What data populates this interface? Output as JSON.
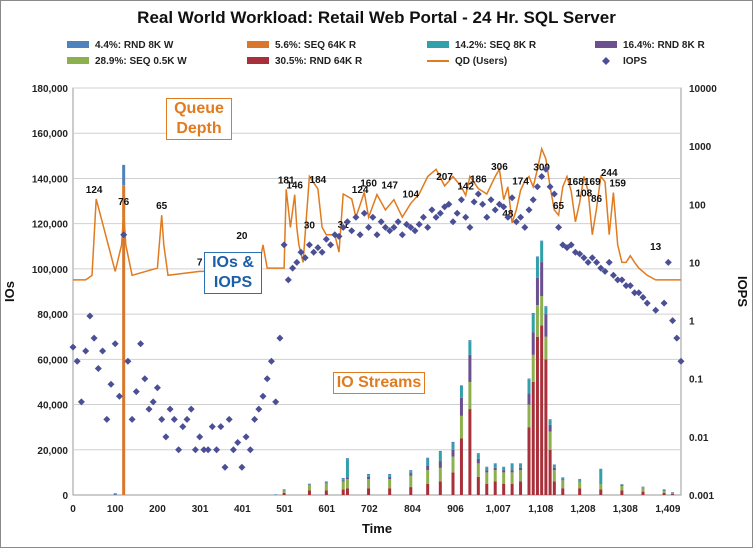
{
  "chart_data": {
    "type": "bar",
    "title": "Real World Workload: Retail Web Portal - 24 Hr. SQL Server",
    "xlabel": "Time",
    "ylabel": "IOs",
    "y2label": "IOPS",
    "ylim": [
      0,
      180000
    ],
    "y2lim_log": [
      0.001,
      10000
    ],
    "xlim": [
      0,
      1440
    ],
    "x_ticks": [
      "0",
      "100",
      "200",
      "301",
      "401",
      "501",
      "601",
      "702",
      "804",
      "906",
      "1,007",
      "1,108",
      "1,208",
      "1,308",
      "1,409"
    ],
    "x_tick_values": [
      0,
      100,
      200,
      301,
      401,
      501,
      601,
      702,
      804,
      906,
      1007,
      1108,
      1208,
      1308,
      1409
    ],
    "y_ticks": [
      "0",
      "20,000",
      "40,000",
      "60,000",
      "80,000",
      "100,000",
      "120,000",
      "140,000",
      "160,000",
      "180,000"
    ],
    "y_tick_values": [
      0,
      20000,
      40000,
      60000,
      80000,
      100000,
      120000,
      140000,
      160000,
      180000
    ],
    "y2_ticks": [
      "0.001",
      "0.01",
      "0.1",
      "1",
      "10",
      "100",
      "1000",
      "10000"
    ],
    "y2_tick_values": [
      0.001,
      0.01,
      0.1,
      1,
      10,
      100,
      1000,
      10000
    ],
    "grid": true,
    "legend_position": "top",
    "legend": [
      {
        "label": "4.4%: RND 8K W",
        "color": "#4f81bd",
        "kind": "bar"
      },
      {
        "label": "5.6%: SEQ 64K R",
        "color": "#d9782d",
        "kind": "bar"
      },
      {
        "label": "14.2%: SEQ 8K R",
        "color": "#31a0a8",
        "kind": "bar"
      },
      {
        "label": "16.4%: RND 8K R",
        "color": "#6b4f8f",
        "kind": "bar"
      },
      {
        "label": "28.9%: SEQ 0.5K W",
        "color": "#8db04e",
        "kind": "bar"
      },
      {
        "label": "30.5%: RND 64K R",
        "color": "#a8303a",
        "kind": "bar"
      },
      {
        "label": "QD (Users)",
        "color": "#e07b1f",
        "kind": "line"
      },
      {
        "label": "IOPS",
        "color": "#4b4f95",
        "kind": "marker"
      }
    ],
    "stacked_bars": {
      "series_order": [
        "30.5%: RND 64K R",
        "28.9%: SEQ 0.5K W",
        "16.4%: RND 8K R",
        "14.2%: SEQ 8K R",
        "5.6%: SEQ 64K R",
        "4.4%: RND 8K W"
      ],
      "x": [
        100,
        120,
        480,
        500,
        560,
        600,
        640,
        650,
        700,
        750,
        800,
        840,
        870,
        900,
        920,
        940,
        960,
        980,
        1000,
        1020,
        1040,
        1060,
        1080,
        1090,
        1100,
        1110,
        1120,
        1130,
        1140,
        1160,
        1200,
        1250,
        1300,
        1350,
        1400,
        1420
      ],
      "values": [
        [
          0,
          0,
          0,
          1000,
          2000,
          2000,
          2500,
          3000,
          3000,
          3000,
          3500,
          5000,
          6000,
          10000,
          25000,
          38000,
          8000,
          5000,
          6000,
          5000,
          5000,
          6000,
          30000,
          50000,
          70000,
          75000,
          60000,
          20000,
          6000,
          3000,
          3000,
          2500,
          2000,
          1500,
          1000,
          500
        ],
        [
          0,
          0,
          0,
          1000,
          2500,
          3000,
          3500,
          4000,
          4000,
          4000,
          5000,
          6000,
          6000,
          7000,
          10000,
          12000,
          6000,
          5000,
          5000,
          5000,
          5000,
          5000,
          10000,
          12000,
          14000,
          13000,
          10000,
          8000,
          5000,
          3500,
          3000,
          2500,
          2000,
          1500,
          1000,
          500
        ],
        [
          0,
          0,
          0,
          0,
          0,
          0,
          500,
          800,
          1000,
          1000,
          1000,
          2000,
          3000,
          3000,
          8000,
          12000,
          2000,
          1000,
          1000,
          1000,
          1000,
          1000,
          5000,
          10000,
          12000,
          15000,
          10000,
          3000,
          1000,
          500,
          300,
          300,
          200,
          200,
          100,
          0
        ],
        [
          0,
          0,
          0,
          0,
          0,
          500,
          500,
          8000,
          800,
          800,
          1000,
          3000,
          4000,
          3000,
          5000,
          6000,
          2000,
          1000,
          1500,
          1000,
          2500,
          1500,
          6000,
          8000,
          9000,
          9000,
          3000,
          2000,
          1000,
          500,
          500,
          6000,
          300,
          200,
          100,
          0
        ],
        [
          0,
          137000,
          0,
          0,
          0,
          0,
          0,
          0,
          0,
          0,
          0,
          0,
          0,
          0,
          0,
          0,
          0,
          0,
          0,
          0,
          0,
          0,
          0,
          0,
          0,
          0,
          0,
          0,
          0,
          0,
          0,
          0,
          0,
          0,
          0,
          0
        ],
        [
          800,
          9000,
          300,
          500,
          500,
          500,
          500,
          500,
          500,
          500,
          500,
          500,
          500,
          500,
          500,
          500,
          500,
          500,
          500,
          500,
          500,
          500,
          500,
          500,
          500,
          500,
          500,
          500,
          500,
          300,
          300,
          300,
          300,
          300,
          300,
          300
        ]
      ]
    },
    "qd_users": {
      "x": [
        0,
        30,
        45,
        55,
        100,
        115,
        120,
        125,
        140,
        200,
        210,
        215,
        225,
        300,
        320,
        330,
        400,
        440,
        450,
        460,
        500,
        505,
        515,
        525,
        530,
        535,
        545,
        560,
        580,
        590,
        600,
        620,
        630,
        640,
        660,
        670,
        690,
        700,
        720,
        740,
        760,
        780,
        800,
        820,
        840,
        860,
        880,
        900,
        920,
        930,
        940,
        960,
        980,
        1000,
        1010,
        1020,
        1030,
        1040,
        1050,
        1060,
        1070,
        1080,
        1090,
        1100,
        1110,
        1120,
        1130,
        1140,
        1150,
        1160,
        1170,
        1180,
        1190,
        1200,
        1210,
        1220,
        1230,
        1240,
        1250,
        1260,
        1270,
        1280,
        1290,
        1300,
        1310,
        1320,
        1330,
        1340,
        1360,
        1380,
        1400,
        1420,
        1440
      ],
      "values": [
        5,
        5,
        6,
        124,
        7,
        20,
        76,
        20,
        6,
        8,
        65,
        20,
        6,
        7,
        7,
        7,
        7,
        8,
        20,
        8,
        8,
        181,
        40,
        146,
        40,
        20,
        10,
        300,
        184,
        40,
        30,
        30,
        15,
        150,
        124,
        60,
        160,
        60,
        147,
        80,
        120,
        60,
        104,
        150,
        300,
        400,
        207,
        300,
        200,
        142,
        300,
        186,
        150,
        300,
        400,
        120,
        200,
        48,
        80,
        174,
        250,
        300,
        200,
        400,
        900,
        600,
        200,
        80,
        65,
        200,
        300,
        168,
        50,
        108,
        300,
        169,
        30,
        86,
        300,
        244,
        30,
        159,
        20,
        10,
        10,
        13,
        10,
        8,
        6,
        5,
        5,
        5,
        5
      ],
      "labels": [
        {
          "x": 50,
          "v": 124,
          "text": "124"
        },
        {
          "x": 120,
          "v": 76,
          "text": "76"
        },
        {
          "x": 210,
          "v": 65,
          "text": "65"
        },
        {
          "x": 300,
          "v": 7,
          "text": "7"
        },
        {
          "x": 400,
          "v": 20,
          "text": "20"
        },
        {
          "x": 505,
          "v": 181,
          "text": "181"
        },
        {
          "x": 525,
          "v": 146,
          "text": "146"
        },
        {
          "x": 560,
          "v": 30,
          "text": "30"
        },
        {
          "x": 580,
          "v": 184,
          "text": "184"
        },
        {
          "x": 640,
          "v": 31,
          "text": "31"
        },
        {
          "x": 680,
          "v": 124,
          "text": "124"
        },
        {
          "x": 700,
          "v": 160,
          "text": "160"
        },
        {
          "x": 750,
          "v": 147,
          "text": "147"
        },
        {
          "x": 800,
          "v": 104,
          "text": "104"
        },
        {
          "x": 880,
          "v": 207,
          "text": "207"
        },
        {
          "x": 930,
          "v": 142,
          "text": "142"
        },
        {
          "x": 960,
          "v": 186,
          "text": "186"
        },
        {
          "x": 1010,
          "v": 306,
          "text": "306"
        },
        {
          "x": 1030,
          "v": 48,
          "text": "48"
        },
        {
          "x": 1060,
          "v": 174,
          "text": "174"
        },
        {
          "x": 1110,
          "v": 300,
          "text": "300"
        },
        {
          "x": 1150,
          "v": 65,
          "text": "65"
        },
        {
          "x": 1190,
          "v": 168,
          "text": "168"
        },
        {
          "x": 1210,
          "v": 108,
          "text": "108"
        },
        {
          "x": 1230,
          "v": 169,
          "text": "169"
        },
        {
          "x": 1240,
          "v": 86,
          "text": "86"
        },
        {
          "x": 1270,
          "v": 244,
          "text": "244"
        },
        {
          "x": 1290,
          "v": 159,
          "text": "159"
        },
        {
          "x": 1380,
          "v": 13,
          "text": "13"
        }
      ]
    },
    "iops": {
      "x": [
        0,
        10,
        20,
        30,
        40,
        50,
        60,
        70,
        80,
        90,
        100,
        110,
        120,
        130,
        140,
        150,
        160,
        170,
        180,
        190,
        200,
        210,
        220,
        230,
        240,
        250,
        260,
        270,
        280,
        290,
        300,
        310,
        320,
        330,
        340,
        350,
        360,
        370,
        380,
        390,
        400,
        410,
        420,
        430,
        440,
        450,
        460,
        470,
        480,
        490,
        500,
        510,
        520,
        530,
        540,
        550,
        560,
        570,
        580,
        590,
        600,
        610,
        620,
        630,
        640,
        650,
        660,
        670,
        680,
        690,
        700,
        710,
        720,
        730,
        740,
        750,
        760,
        770,
        780,
        790,
        800,
        810,
        820,
        830,
        840,
        850,
        860,
        870,
        880,
        890,
        900,
        910,
        920,
        930,
        940,
        950,
        960,
        970,
        980,
        990,
        1000,
        1010,
        1020,
        1030,
        1040,
        1050,
        1060,
        1070,
        1080,
        1090,
        1100,
        1110,
        1120,
        1130,
        1140,
        1150,
        1160,
        1170,
        1180,
        1190,
        1200,
        1210,
        1220,
        1230,
        1240,
        1250,
        1260,
        1270,
        1280,
        1290,
        1300,
        1310,
        1320,
        1330,
        1340,
        1350,
        1360,
        1380,
        1400,
        1410,
        1420,
        1430,
        1440
      ],
      "values": [
        0.35,
        0.2,
        0.04,
        0.3,
        1.2,
        0.5,
        0.15,
        0.3,
        0.02,
        0.08,
        0.4,
        0.05,
        30,
        0.2,
        0.02,
        0.06,
        0.4,
        0.1,
        0.03,
        0.04,
        0.07,
        0.02,
        0.01,
        0.03,
        0.02,
        0.006,
        0.015,
        0.02,
        0.03,
        0.006,
        0.01,
        0.006,
        0.006,
        0.015,
        0.006,
        0.015,
        0.003,
        0.02,
        0.006,
        0.008,
        0.003,
        0.01,
        0.006,
        0.02,
        0.03,
        0.05,
        0.1,
        0.2,
        0.04,
        0.5,
        20,
        5,
        8,
        10,
        15,
        12,
        20,
        15,
        18,
        15,
        25,
        20,
        30,
        28,
        40,
        50,
        35,
        60,
        30,
        70,
        40,
        60,
        30,
        50,
        40,
        35,
        40,
        50,
        30,
        45,
        40,
        35,
        45,
        60,
        40,
        80,
        60,
        70,
        90,
        100,
        50,
        70,
        120,
        60,
        40,
        110,
        150,
        100,
        60,
        120,
        80,
        100,
        90,
        60,
        130,
        50,
        60,
        40,
        80,
        120,
        200,
        300,
        400,
        200,
        150,
        40,
        20,
        18,
        20,
        15,
        14,
        12,
        10,
        12,
        10,
        8,
        7,
        10,
        6,
        5,
        5,
        4,
        4,
        3,
        3,
        2.5,
        2,
        1.5,
        2,
        10,
        1,
        0.5,
        0.2
      ]
    }
  }
}
